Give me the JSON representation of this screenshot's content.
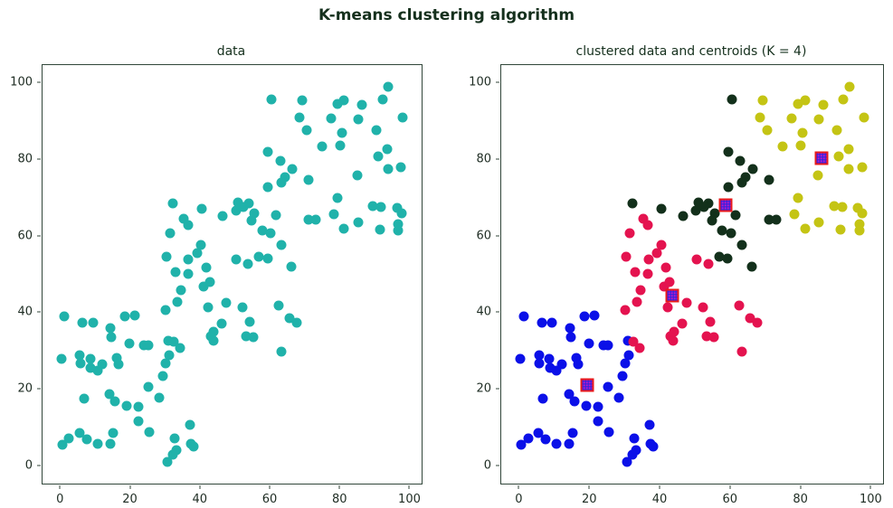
{
  "figure_title": "K-means clustering algorithm",
  "colors": {
    "title_text": "#15301d",
    "tick_text": "#1e2c23",
    "spine": "#31463a",
    "raw_data_cyan": "#20B2AA",
    "cluster_blue": "#0b10e8",
    "cluster_crimson": "#e4134f",
    "cluster_darkgreen": "#13301b",
    "cluster_yellow": "#c4c414",
    "centroid_fill": "#c517c5",
    "centroid_edge": "#e81a1a"
  },
  "chart_data": {
    "type": "scatter",
    "grid": false,
    "legend": "none",
    "xlim": [
      -5,
      103.5
    ],
    "ylim": [
      -4.8,
      104.5
    ],
    "xticks": [
      0,
      20,
      40,
      60,
      80,
      100
    ],
    "yticks": [
      0,
      20,
      40,
      60,
      80,
      100
    ],
    "points_by_cluster": {
      "blue": [
        [
          1.3,
          38.8
        ],
        [
          6.5,
          37.2
        ],
        [
          9.5,
          37.2
        ],
        [
          18.6,
          38.8
        ],
        [
          21.5,
          39.0
        ],
        [
          14.5,
          35.7
        ],
        [
          14.7,
          33.4
        ],
        [
          19.9,
          31.8
        ],
        [
          24.0,
          31.4
        ],
        [
          25.3,
          31.4
        ],
        [
          0.5,
          27.8
        ],
        [
          5.7,
          28.7
        ],
        [
          5.9,
          26.6
        ],
        [
          8.6,
          27.7
        ],
        [
          8.8,
          25.4
        ],
        [
          10.8,
          24.6
        ],
        [
          12.1,
          26.3
        ],
        [
          16.3,
          27.9
        ],
        [
          16.8,
          26.3
        ],
        [
          31.0,
          32.5
        ],
        [
          31.2,
          28.7
        ],
        [
          30.2,
          26.5
        ],
        [
          29.4,
          23.3
        ],
        [
          25.4,
          20.4
        ],
        [
          28.4,
          17.6
        ],
        [
          6.9,
          17.5
        ],
        [
          14.2,
          18.6
        ],
        [
          15.8,
          16.6
        ],
        [
          19.2,
          15.5
        ],
        [
          22.4,
          15.3
        ],
        [
          22.4,
          11.5
        ],
        [
          25.6,
          8.6
        ],
        [
          37.2,
          10.6
        ],
        [
          15.2,
          8.5
        ],
        [
          5.6,
          8.5
        ],
        [
          7.6,
          6.7
        ],
        [
          2.6,
          7.1
        ],
        [
          10.8,
          5.6
        ],
        [
          14.4,
          5.5
        ],
        [
          0.6,
          5.4
        ],
        [
          32.7,
          7.1
        ],
        [
          33.4,
          4.0
        ],
        [
          37.5,
          5.5
        ],
        [
          38.3,
          4.8
        ],
        [
          30.8,
          0.8
        ],
        [
          32.3,
          2.8
        ]
      ],
      "crimson": [
        [
          35.4,
          64.3
        ],
        [
          36.6,
          62.7
        ],
        [
          31.5,
          60.5
        ],
        [
          40.4,
          57.5
        ],
        [
          39.2,
          55.3
        ],
        [
          30.6,
          54.5
        ],
        [
          36.8,
          53.7
        ],
        [
          33.0,
          50.5
        ],
        [
          36.6,
          50.0
        ],
        [
          41.8,
          51.7
        ],
        [
          50.5,
          53.7
        ],
        [
          53.9,
          52.6
        ],
        [
          34.7,
          45.7
        ],
        [
          41.2,
          46.6
        ],
        [
          42.9,
          47.8
        ],
        [
          33.5,
          42.7
        ],
        [
          30.3,
          40.5
        ],
        [
          42.4,
          41.3
        ],
        [
          46.4,
          36.9
        ],
        [
          43.1,
          33.7
        ],
        [
          43.9,
          32.4
        ],
        [
          32.5,
          32.2
        ],
        [
          34.4,
          30.6
        ],
        [
          47.6,
          42.5
        ],
        [
          52.3,
          41.3
        ],
        [
          62.5,
          41.7
        ],
        [
          54.3,
          37.4
        ],
        [
          44.0,
          34.9
        ],
        [
          53.3,
          33.7
        ],
        [
          55.3,
          33.4
        ],
        [
          65.6,
          38.3
        ],
        [
          67.7,
          37.2
        ],
        [
          63.4,
          29.6
        ]
      ],
      "darkgreen": [
        [
          60.5,
          95.5
        ],
        [
          59.5,
          81.8
        ],
        [
          63.0,
          79.5
        ],
        [
          66.4,
          77.4
        ],
        [
          64.3,
          75.2
        ],
        [
          63.4,
          73.7
        ],
        [
          71.2,
          74.6
        ],
        [
          59.5,
          72.7
        ],
        [
          51.0,
          68.7
        ],
        [
          54.0,
          68.4
        ],
        [
          52.5,
          67.5
        ],
        [
          32.3,
          68.5
        ],
        [
          40.6,
          66.9
        ],
        [
          46.6,
          65.0
        ],
        [
          50.4,
          66.6
        ],
        [
          55.6,
          65.7
        ],
        [
          61.7,
          65.4
        ],
        [
          71.1,
          64.2
        ],
        [
          73.1,
          64.2
        ],
        [
          54.9,
          63.8
        ],
        [
          57.8,
          61.2
        ],
        [
          60.3,
          60.6
        ],
        [
          63.4,
          57.5
        ],
        [
          57.0,
          54.5
        ],
        [
          59.4,
          54.1
        ],
        [
          66.3,
          51.8
        ]
      ],
      "yellow": [
        [
          94.0,
          98.8
        ],
        [
          69.3,
          95.4
        ],
        [
          79.4,
          94.4
        ],
        [
          81.3,
          95.2
        ],
        [
          86.5,
          94.1
        ],
        [
          92.3,
          95.5
        ],
        [
          77.6,
          90.6
        ],
        [
          85.3,
          90.4
        ],
        [
          98.1,
          90.7
        ],
        [
          68.6,
          90.7
        ],
        [
          70.5,
          87.4
        ],
        [
          80.6,
          86.8
        ],
        [
          90.5,
          87.4
        ],
        [
          74.9,
          83.3
        ],
        [
          80.1,
          83.5
        ],
        [
          91.0,
          80.7
        ],
        [
          93.7,
          82.6
        ],
        [
          97.5,
          77.9
        ],
        [
          93.8,
          77.3
        ],
        [
          85.0,
          75.7
        ],
        [
          79.4,
          69.7
        ],
        [
          78.4,
          65.6
        ],
        [
          81.3,
          61.8
        ],
        [
          85.3,
          63.5
        ],
        [
          89.6,
          67.6
        ],
        [
          91.9,
          67.5
        ],
        [
          96.4,
          67.3
        ],
        [
          97.7,
          65.9
        ],
        [
          91.5,
          61.6
        ],
        [
          96.7,
          62.9
        ],
        [
          96.8,
          61.3
        ]
      ]
    },
    "centroids": [
      [
        19.4,
        21.0
      ],
      [
        43.7,
        44.4
      ],
      [
        58.8,
        68.0
      ],
      [
        86.0,
        80.2
      ]
    ],
    "charts": [
      {
        "title": "data",
        "show_centroids": false,
        "series": [
          {
            "name": "raw-data",
            "color": "#20B2AA",
            "clusters": [
              "blue",
              "crimson",
              "darkgreen",
              "yellow"
            ]
          }
        ]
      },
      {
        "title": "clustered data and centroids (K = 4)",
        "show_centroids": true,
        "series": [
          {
            "name": "cluster-blue",
            "color": "#0b10e8",
            "clusters": [
              "blue"
            ]
          },
          {
            "name": "cluster-crimson",
            "color": "#e4134f",
            "clusters": [
              "crimson"
            ]
          },
          {
            "name": "cluster-darkgreen",
            "color": "#13301b",
            "clusters": [
              "darkgreen"
            ]
          },
          {
            "name": "cluster-yellow",
            "color": "#c4c414",
            "clusters": [
              "yellow"
            ]
          }
        ]
      }
    ]
  }
}
